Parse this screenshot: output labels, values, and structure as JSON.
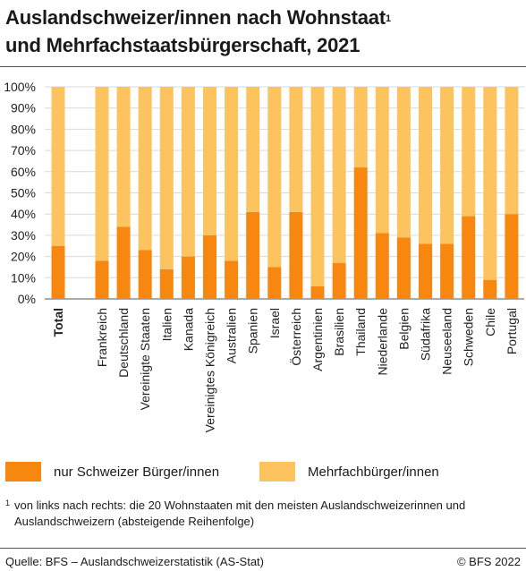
{
  "title": {
    "line1": "Auslandschweizer/innen nach Wohnstaat",
    "sup": "1",
    "line2": "und Mehrfachstaatsbürgerschaft, 2021"
  },
  "chart_data": {
    "type": "bar",
    "stacked": true,
    "percent": true,
    "categories": [
      "Total",
      "Frankreich",
      "Deutschland",
      "Vereinigte Staaten",
      "Italien",
      "Kanada",
      "Vereinigtes Königreich",
      "Australien",
      "Spanien",
      "Israel",
      "Österreich",
      "Argentinien",
      "Brasilien",
      "Thailand",
      "Niederlande",
      "Belgien",
      "Südafrika",
      "Neuseeland",
      "Schweden",
      "Chile",
      "Portugal"
    ],
    "series": [
      {
        "name": "nur Schweizer Bürger/innen",
        "color": "#f7870f",
        "values": [
          25,
          18,
          34,
          23,
          14,
          20,
          30,
          18,
          41,
          15,
          41,
          6,
          17,
          62,
          31,
          29,
          26,
          26,
          39,
          9,
          40
        ]
      },
      {
        "name": "Mehrfachbürger/innen",
        "color": "#fdc35f",
        "values": [
          75,
          82,
          66,
          77,
          86,
          80,
          70,
          82,
          59,
          85,
          59,
          94,
          83,
          38,
          69,
          71,
          74,
          74,
          61,
          91,
          60
        ]
      }
    ],
    "ylim": [
      0,
      100
    ],
    "yticks": [
      "0%",
      "10%",
      "20%",
      "30%",
      "40%",
      "50%",
      "60%",
      "70%",
      "80%",
      "90%",
      "100%"
    ],
    "grid": true,
    "legend_position": "bottom"
  },
  "legend": {
    "item1": "nur Schweizer Bürger/innen",
    "item2": "Mehrfachbürger/innen"
  },
  "footnote": {
    "mark": "1",
    "text": "von links nach rechts: die 20 Wohnstaaten mit den meisten Auslandschweizerinnen und Auslandschweizern (absteigende Reihenfolge)"
  },
  "footer": {
    "source": "Quelle: BFS – Auslandschweizerstatistik (AS-Stat)",
    "copyright": "© BFS 2022"
  },
  "colors": {
    "primary": "#f7870f",
    "secondary": "#fdc35f",
    "grid": "#d9d9d9"
  }
}
